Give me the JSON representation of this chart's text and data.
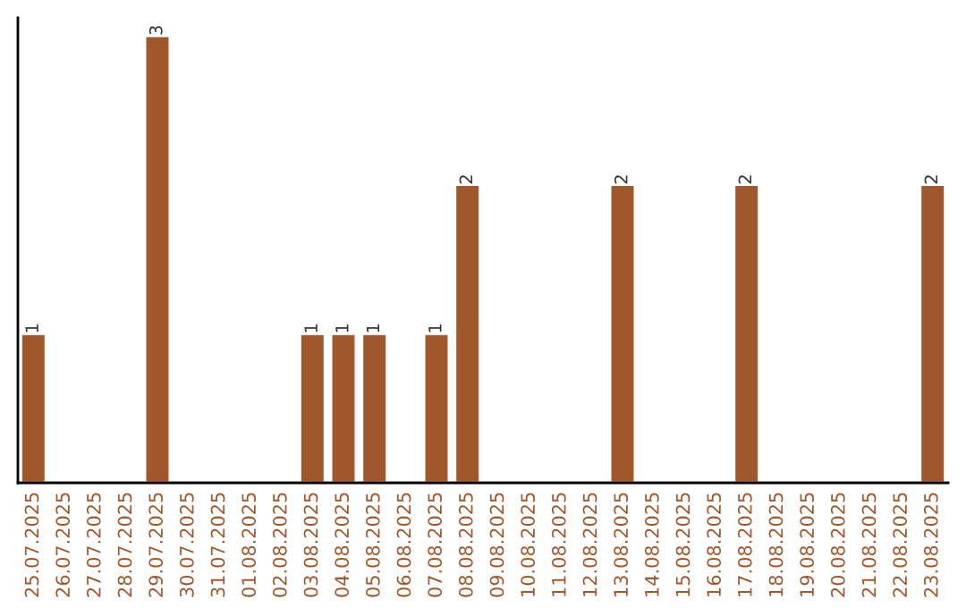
{
  "chart_data": {
    "type": "bar",
    "categories": [
      "25.07.2025",
      "26.07.2025",
      "27.07.2025",
      "28.07.2025",
      "29.07.2025",
      "30.07.2025",
      "31.07.2025",
      "01.08.2025",
      "02.08.2025",
      "03.08.2025",
      "04.08.2025",
      "05.08.2025",
      "06.08.2025",
      "07.08.2025",
      "08.08.2025",
      "09.08.2025",
      "10.08.2025",
      "11.08.2025",
      "12.08.2025",
      "13.08.2025",
      "14.08.2025",
      "15.08.2025",
      "16.08.2025",
      "17.08.2025",
      "18.08.2025",
      "19.08.2025",
      "20.08.2025",
      "21.08.2025",
      "22.08.2025",
      "23.08.2025"
    ],
    "values": [
      1,
      0,
      0,
      0,
      3,
      0,
      0,
      0,
      0,
      1,
      1,
      1,
      0,
      1,
      2,
      0,
      0,
      0,
      0,
      2,
      0,
      0,
      0,
      2,
      0,
      0,
      0,
      0,
      0,
      2
    ],
    "value_labels": [
      "1",
      null,
      null,
      null,
      "3",
      null,
      null,
      null,
      null,
      "1",
      "1",
      "1",
      null,
      "1",
      "2",
      null,
      null,
      null,
      null,
      "2",
      null,
      null,
      null,
      "2",
      null,
      null,
      null,
      null,
      null,
      "2"
    ],
    "color": "#a0572b",
    "ylim": [
      0,
      3.12
    ],
    "tick_labels": "x",
    "grid": false
  }
}
